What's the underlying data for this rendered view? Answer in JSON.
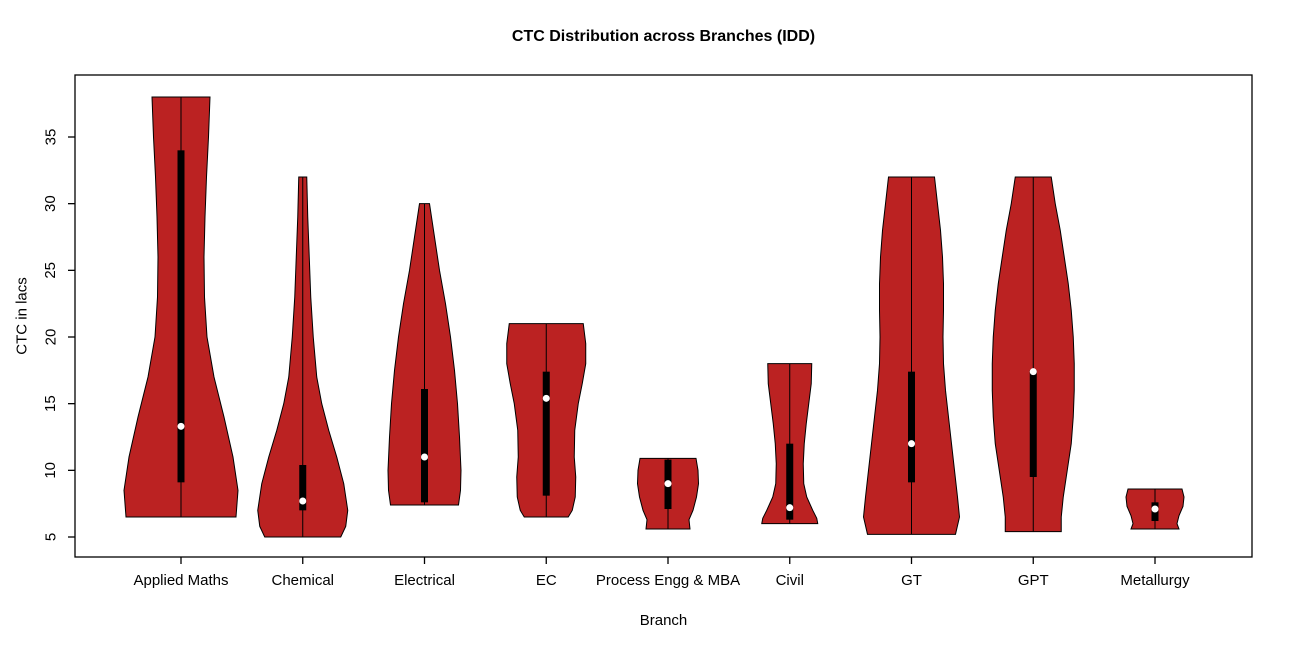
{
  "page": {
    "background": "#ffffff"
  },
  "chart_data": {
    "type": "violin",
    "title": "CTC Distribution across Branches (IDD)",
    "xlabel": "Branch",
    "ylabel": "CTC in lacs",
    "y_ticks": [
      5,
      10,
      15,
      20,
      25,
      30,
      35
    ],
    "ylim": [
      3.5,
      39.65
    ],
    "fill_color": "#BB2222",
    "stroke_color": "#000000",
    "median_dot_color": "#ffffff",
    "box_color": "#000000",
    "categories": [
      "Applied Maths",
      "Chemical",
      "Electrical",
      "EC",
      "Process Engg & MBA",
      "Civil",
      "GT",
      "GPT",
      "Metallurgy"
    ],
    "violins": [
      {
        "label": "Applied Maths",
        "min": 6.5,
        "max": 38,
        "q1": 9.1,
        "q3": 34,
        "median": 13.3,
        "profile": [
          [
            38,
            29
          ],
          [
            35,
            27.5
          ],
          [
            32,
            25.5
          ],
          [
            29,
            24
          ],
          [
            26,
            23
          ],
          [
            23,
            23.5
          ],
          [
            20,
            26
          ],
          [
            17,
            33
          ],
          [
            14,
            43
          ],
          [
            11,
            52
          ],
          [
            8.5,
            57
          ],
          [
            6.5,
            55
          ]
        ]
      },
      {
        "label": "Chemical",
        "min": 5,
        "max": 32,
        "q1": 7.0,
        "q3": 10.4,
        "median": 7.7,
        "profile": [
          [
            32,
            4
          ],
          [
            29,
            5
          ],
          [
            26,
            6.5
          ],
          [
            23,
            8
          ],
          [
            20,
            10.5
          ],
          [
            17,
            14
          ],
          [
            15,
            19
          ],
          [
            13,
            26
          ],
          [
            11,
            34
          ],
          [
            9,
            41
          ],
          [
            7,
            45
          ],
          [
            5.8,
            43
          ],
          [
            5,
            38
          ]
        ]
      },
      {
        "label": "Electrical",
        "min": 7.4,
        "max": 30,
        "q1": 7.6,
        "q3": 16.1,
        "median": 11.0,
        "profile": [
          [
            30,
            5
          ],
          [
            27.5,
            10
          ],
          [
            25,
            15
          ],
          [
            22.5,
            21
          ],
          [
            20,
            26
          ],
          [
            17.5,
            30
          ],
          [
            15,
            33
          ],
          [
            12.5,
            35
          ],
          [
            10,
            36.5
          ],
          [
            8.5,
            36
          ],
          [
            7.4,
            34
          ]
        ]
      },
      {
        "label": "EC",
        "min": 6.5,
        "max": 21,
        "q1": 8.1,
        "q3": 17.4,
        "median": 15.4,
        "profile": [
          [
            21,
            37
          ],
          [
            19.5,
            39.5
          ],
          [
            18,
            39.5
          ],
          [
            16.5,
            36
          ],
          [
            15,
            32
          ],
          [
            13,
            28.5
          ],
          [
            11,
            28
          ],
          [
            9.5,
            29.5
          ],
          [
            8,
            29
          ],
          [
            7,
            26
          ],
          [
            6.5,
            22
          ]
        ]
      },
      {
        "label": "Process Engg & MBA",
        "min": 5.6,
        "max": 10.9,
        "q1": 7.1,
        "q3": 10.8,
        "median": 9.0,
        "profile": [
          [
            10.9,
            28
          ],
          [
            10,
            30
          ],
          [
            9,
            30.5
          ],
          [
            8,
            28.5
          ],
          [
            7,
            25
          ],
          [
            6.3,
            21
          ],
          [
            5.6,
            22
          ]
        ]
      },
      {
        "label": "Civil",
        "min": 6,
        "max": 18,
        "q1": 6.3,
        "q3": 12.0,
        "median": 7.2,
        "profile": [
          [
            18,
            22
          ],
          [
            16.5,
            21.5
          ],
          [
            15,
            19
          ],
          [
            13.5,
            16.5
          ],
          [
            12,
            14.5
          ],
          [
            10.5,
            13.5
          ],
          [
            9,
            14
          ],
          [
            8,
            17
          ],
          [
            7,
            23
          ],
          [
            6.4,
            27
          ],
          [
            6,
            28
          ]
        ]
      },
      {
        "label": "GT",
        "min": 5.2,
        "max": 32,
        "q1": 9.1,
        "q3": 17.4,
        "median": 12.0,
        "profile": [
          [
            32,
            23
          ],
          [
            30,
            26
          ],
          [
            28,
            29
          ],
          [
            26,
            31
          ],
          [
            24,
            32
          ],
          [
            22,
            32
          ],
          [
            20,
            31.5
          ],
          [
            18,
            32
          ],
          [
            16,
            34
          ],
          [
            14,
            37
          ],
          [
            12,
            40
          ],
          [
            10,
            43
          ],
          [
            8,
            46
          ],
          [
            6.5,
            48
          ],
          [
            5.2,
            44
          ]
        ]
      },
      {
        "label": "GPT",
        "min": 5.4,
        "max": 32,
        "q1": 9.5,
        "q3": 17.5,
        "median": 17.4,
        "profile": [
          [
            32,
            18
          ],
          [
            30,
            22
          ],
          [
            28,
            27
          ],
          [
            26,
            31
          ],
          [
            24,
            35
          ],
          [
            22,
            38
          ],
          [
            20,
            40
          ],
          [
            18,
            41
          ],
          [
            16,
            41
          ],
          [
            14,
            40
          ],
          [
            12,
            38
          ],
          [
            10,
            34
          ],
          [
            8,
            30
          ],
          [
            6.5,
            28
          ],
          [
            5.4,
            28
          ]
        ]
      },
      {
        "label": "Metallurgy",
        "min": 5.6,
        "max": 8.6,
        "q1": 6.2,
        "q3": 7.6,
        "median": 7.1,
        "profile": [
          [
            8.6,
            27
          ],
          [
            8,
            29
          ],
          [
            7.3,
            28
          ],
          [
            6.6,
            24
          ],
          [
            6,
            22
          ],
          [
            5.6,
            24
          ]
        ]
      }
    ]
  }
}
